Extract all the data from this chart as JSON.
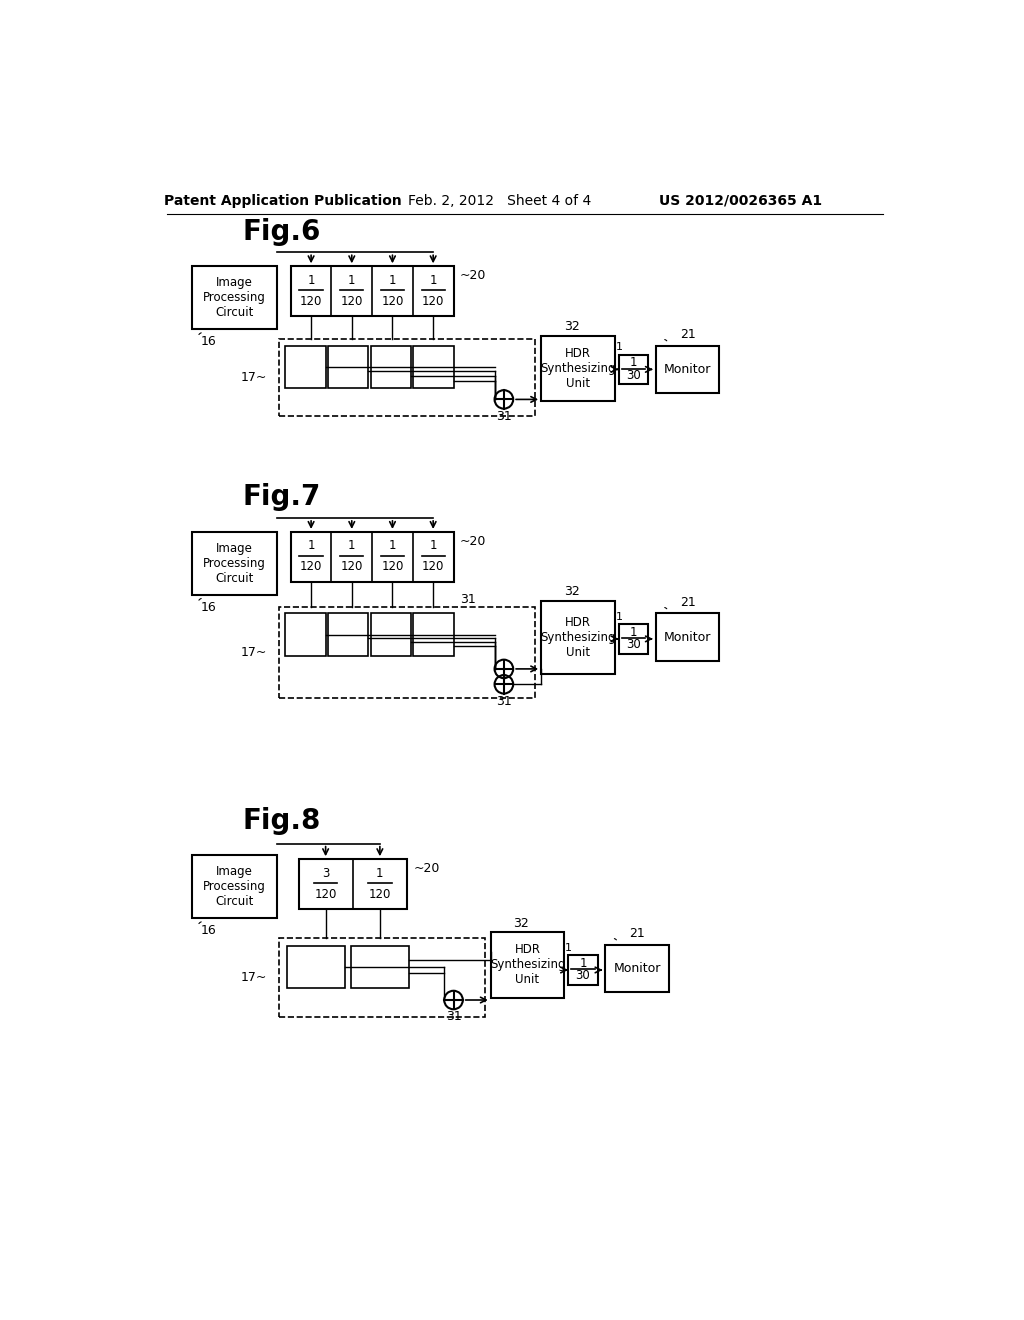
{
  "background_color": "#ffffff",
  "header_left": "Patent Application Publication",
  "header_center": "Feb. 2, 2012   Sheet 4 of 4",
  "header_right": "US 2012/0026365 A1",
  "fig6_title": "Fig.6",
  "fig7_title": "Fig.7",
  "fig8_title": "Fig.8"
}
